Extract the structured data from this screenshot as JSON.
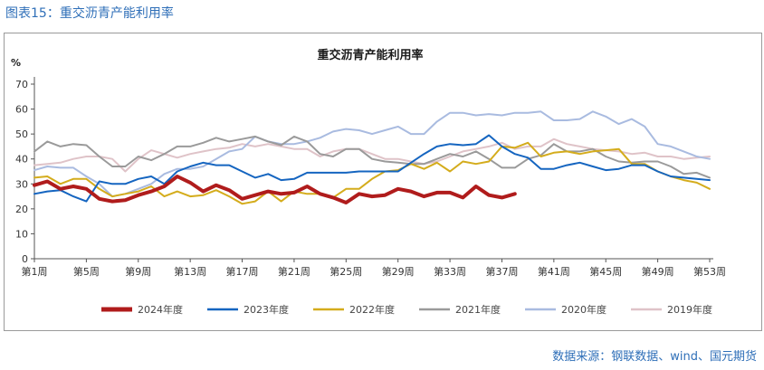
{
  "figure_title": "图表15：重交沥青产能利用率",
  "source": "数据来源：钢联数据、wind、国元期货",
  "chart_data": {
    "type": "line",
    "title": "重交沥青产能利用率",
    "ylabel": "%",
    "xlabel": "",
    "ylim": [
      0,
      70
    ],
    "yticks": [
      0,
      10,
      20,
      30,
      40,
      50,
      60,
      70
    ],
    "week_range": [
      1,
      53
    ],
    "xtick_labels": [
      "第1周",
      "第5周",
      "第9周",
      "第13周",
      "第17周",
      "第21周",
      "第25周",
      "第29周",
      "第33周",
      "第37周",
      "第41周",
      "第45周",
      "第49周",
      "第53周"
    ],
    "grid": false,
    "legend_position": "bottom",
    "series": [
      {
        "name": "2024年度",
        "color": "#b01c1c",
        "width": 4,
        "values": [
          29.5,
          31,
          28,
          29,
          28,
          24,
          23,
          23.5,
          25.5,
          27,
          29,
          33,
          30.5,
          27,
          29.5,
          27.5,
          24,
          25.5,
          27,
          26,
          26.5,
          29,
          26,
          24.5,
          22.5,
          26,
          25,
          25.5,
          28,
          27,
          25,
          26.5,
          26.5,
          24.5,
          29,
          25.5,
          24.5,
          26
        ]
      },
      {
        "name": "2023年度",
        "color": "#1565c0",
        "width": 2,
        "values": [
          26,
          27,
          27.5,
          25,
          23,
          31,
          30,
          30,
          32,
          33,
          30,
          35,
          37,
          38.5,
          37.5,
          37.5,
          35,
          32.5,
          34,
          31.5,
          32,
          34.5,
          34.5,
          34.5,
          34.5,
          35,
          35,
          35,
          35,
          38.5,
          42,
          45,
          46,
          45.5,
          46,
          49.5,
          45,
          42,
          40.5,
          36,
          36,
          37.5,
          38.5,
          37,
          35.5,
          36,
          37.5,
          37.5,
          35,
          33,
          32.5,
          32,
          31.5
        ]
      },
      {
        "name": "2022年度",
        "color": "#d4ac1c",
        "width": 2,
        "values": [
          32.5,
          33,
          30,
          32,
          32,
          28,
          25,
          26,
          27,
          29,
          25,
          27,
          25,
          25.5,
          27.5,
          25,
          22,
          23,
          27,
          23,
          27,
          26,
          26,
          24.5,
          28,
          28,
          32,
          35,
          35.5,
          38,
          36,
          38.5,
          35,
          39,
          38,
          39,
          45,
          44.5,
          46.5,
          41,
          42.5,
          43,
          42,
          43,
          43.5,
          44,
          38,
          38,
          35,
          33,
          31.5,
          30.5,
          28
        ]
      },
      {
        "name": "2021年度",
        "color": "#9a9a9a",
        "width": 2,
        "values": [
          43,
          47,
          45,
          46,
          45.5,
          41,
          37,
          37,
          41,
          39.5,
          42,
          45,
          45,
          46.5,
          48.5,
          47,
          48,
          49,
          47,
          45.5,
          49,
          47,
          42,
          41,
          44,
          44,
          40,
          39,
          38.5,
          38,
          38,
          40,
          42,
          41,
          43,
          40,
          36.5,
          36.5,
          40,
          41.5,
          46,
          43,
          43,
          44,
          41,
          39,
          38.5,
          39,
          39,
          37,
          34,
          34.5,
          32.5
        ]
      },
      {
        "name": "2020年度",
        "color": "#a9bbe0",
        "width": 2,
        "values": [
          35.5,
          37,
          36.5,
          36.5,
          33,
          30,
          25,
          26,
          28,
          30,
          34,
          36,
          36,
          37,
          40,
          43,
          44,
          49,
          47,
          46,
          46,
          47,
          48.5,
          51,
          52,
          51.5,
          50,
          51.5,
          53,
          50,
          50,
          55,
          58.5,
          58.5,
          57.5,
          58,
          57.5,
          58.5,
          58.5,
          59,
          55.5,
          55.5,
          56,
          59,
          57,
          54,
          56,
          53,
          46,
          45,
          43,
          41,
          40
        ]
      },
      {
        "name": "2019年度",
        "color": "#dfc3c8",
        "width": 2,
        "values": [
          37.5,
          38,
          38.5,
          40,
          41,
          41,
          40,
          35,
          40,
          43.5,
          42,
          40.5,
          42,
          43,
          44,
          44.5,
          46,
          45,
          46,
          45,
          44,
          44,
          41,
          43,
          44,
          44,
          42,
          40,
          40,
          39,
          38,
          39,
          41,
          43,
          44,
          45,
          46.5,
          44,
          45,
          45,
          48,
          46,
          45,
          44,
          43.5,
          43,
          42,
          42.5,
          41,
          41,
          40,
          40.5,
          41
        ]
      }
    ]
  }
}
